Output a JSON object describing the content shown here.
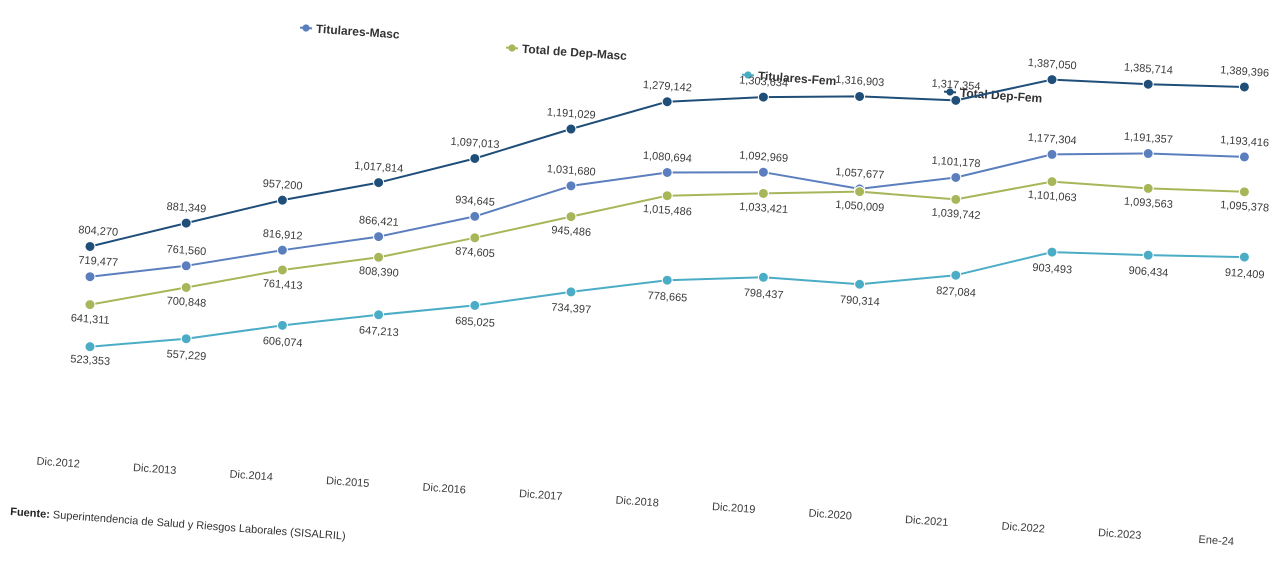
{
  "chart_data": {
    "type": "line",
    "categories": [
      "Dic.2012",
      "Dic.2013",
      "Dic.2014",
      "Dic.2015",
      "Dic.2016",
      "Dic.2017",
      "Dic.2018",
      "Dic.2019",
      "Dic.2020",
      "Dic.2021",
      "Dic.2022",
      "Dic.2023",
      "Ene-24"
    ],
    "series": [
      {
        "name": "Titulares-Masc",
        "color": "#5b7fbe",
        "values": [
          719477,
          761560,
          816912,
          866421,
          934645,
          1031680,
          1080694,
          1092969,
          1057677,
          1101178,
          1177304,
          1191357,
          1193416
        ],
        "labels": [
          "719,477",
          "761,560",
          "816,912",
          "866,421",
          "934,645",
          "1,031,680",
          "1,080,694",
          "1,092,969",
          "1,057,677",
          "1,101,178",
          "1,177,304",
          "1,191,357",
          "1,193,416"
        ]
      },
      {
        "name": "Total de Dep-Masc",
        "color": "#a7b658",
        "values": [
          641311,
          700848,
          761413,
          808390,
          874605,
          945486,
          1015486,
          1033421,
          1050009,
          1039742,
          1101063,
          1093563,
          1095378
        ],
        "labels": [
          "641,311",
          "700,848",
          "761,413",
          "808,390",
          "874,605",
          "945,486",
          "1,015,486",
          "1,033,421",
          "1,050,009",
          "1,039,742",
          "1,101,063",
          "1,093,563",
          "1,095,378"
        ]
      },
      {
        "name": "Titulares-Fem",
        "color": "#4bacc6",
        "values": [
          523353,
          557229,
          606074,
          647213,
          685025,
          734397,
          778665,
          798437,
          790314,
          827084,
          903493,
          906434,
          912409
        ],
        "labels": [
          "523,353",
          "557,229",
          "606,074",
          "647,213",
          "685,025",
          "734,397",
          "778,665",
          "798,437",
          "790,314",
          "827,084",
          "903,493",
          "906,434",
          "912,409"
        ]
      },
      {
        "name": "Total Dep-Fem",
        "color": "#1f4e79",
        "values": [
          804270,
          881349,
          957200,
          1017814,
          1097013,
          1191029,
          1279142,
          1303634,
          1316903,
          1317354,
          1387050,
          1385714,
          1389396
        ],
        "labels": [
          "804,270",
          "881,349",
          "957,200",
          "1,017,814",
          "1,097,013",
          "1,191,029",
          "1,279,142",
          "1,303,634",
          "1,316,903",
          "1,317,354",
          "1,387,050",
          "1,385,714",
          "1,389,396"
        ]
      }
    ],
    "title": "",
    "xlabel": "",
    "ylabel": "",
    "legend": "top",
    "grid": false
  },
  "source": {
    "label": "Fuente:",
    "text": " Superintendencia de Salud y Riesgos Laborales (SISALRIL)"
  }
}
